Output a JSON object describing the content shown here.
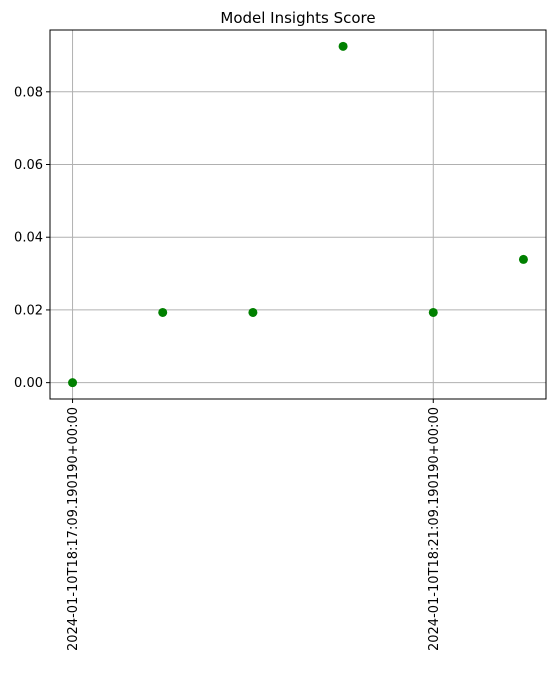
{
  "chart_data": {
    "type": "scatter",
    "title": "Model Insights Score",
    "xlabel": "",
    "ylabel": "",
    "x_unit": "minutes",
    "x": [
      0,
      1,
      2,
      3,
      4,
      5
    ],
    "y": [
      0.0,
      0.0193,
      0.0193,
      0.0925,
      0.0193,
      0.0339
    ],
    "xlim": [
      -0.25,
      5.25
    ],
    "ylim": [
      -0.0045,
      0.097
    ],
    "y_ticks": [
      0.0,
      0.02,
      0.04,
      0.06,
      0.08
    ],
    "y_tick_labels": [
      "0.00",
      "0.02",
      "0.04",
      "0.06",
      "0.08"
    ],
    "x_ticks": [
      0,
      4
    ],
    "x_tick_labels": [
      "2024-01-10T18:17:09.190190+00:00",
      "2024-01-10T18:21:09.190190+00:00"
    ],
    "grid": true,
    "marker_color": "#008000",
    "grid_color": "#b0b0b0"
  }
}
